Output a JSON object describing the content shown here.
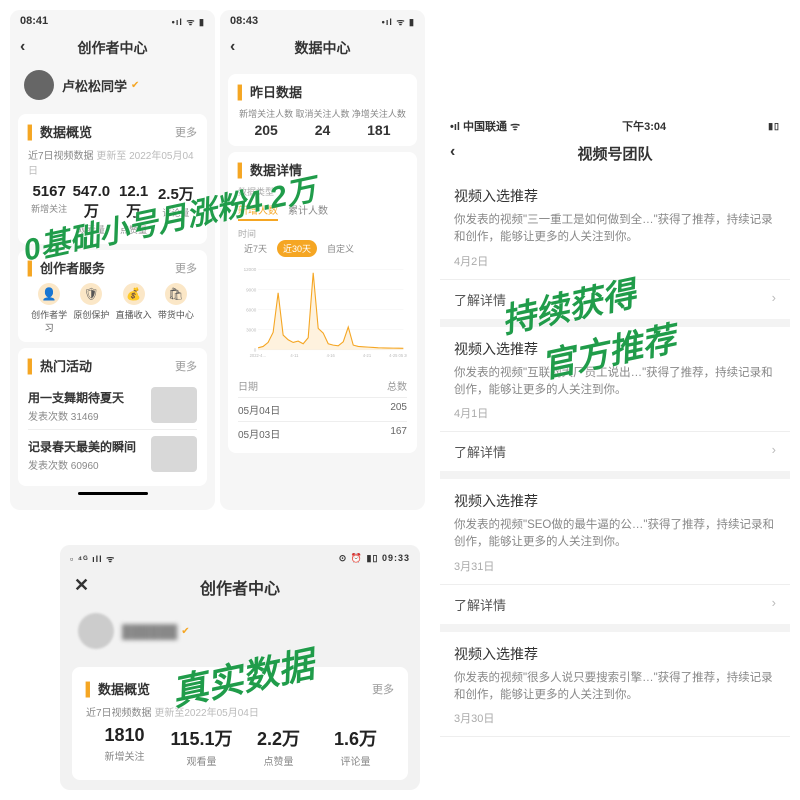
{
  "overlays": {
    "o1": "0基础小号月涨粉4.2万",
    "o2a": "持续获得",
    "o2b": "官方推荐",
    "o3": "真实数据"
  },
  "colors": {
    "accent": "#f5a623",
    "green": "#209c4a"
  },
  "p1": {
    "time": "08:41",
    "title": "创作者中心",
    "user": "卢松松同学",
    "overview": {
      "head": "数据概览",
      "more": "更多",
      "sub_a": "近7日视频数据",
      "sub_b": "更新至 2022年05月04日",
      "cols": [
        {
          "v": "5167",
          "l": "新增关注"
        },
        {
          "v": "547.0万",
          "l": "观看量"
        },
        {
          "v": "12.1万",
          "l": "点赞量"
        },
        {
          "v": "2.5万",
          "l": "评论量"
        }
      ]
    },
    "service": {
      "head": "创作者服务",
      "more": "更多",
      "items": [
        {
          "ic": "👤",
          "l": "创作者学习"
        },
        {
          "ic": "🛡",
          "l": "原创保护"
        },
        {
          "ic": "💰",
          "l": "直播收入"
        },
        {
          "ic": "🛍",
          "l": "带货中心"
        }
      ]
    },
    "hot": {
      "head": "热门活动",
      "more": "更多",
      "items": [
        {
          "t": "用一支舞期待夏天",
          "s": "发表次数  31469"
        },
        {
          "t": "记录春天最美的瞬间",
          "s": "发表次数  60960"
        }
      ]
    }
  },
  "p2": {
    "time": "08:43",
    "title": "数据中心",
    "yest": {
      "head": "昨日数据",
      "cols": [
        {
          "l": "新增关注人数",
          "v": "205"
        },
        {
          "l": "取消关注人数",
          "v": "24"
        },
        {
          "l": "净增关注人数",
          "v": "181"
        }
      ]
    },
    "detail": {
      "head": "数据详情",
      "tabs_label": "数据类型",
      "tabs": [
        "新增人数",
        "累计人数"
      ],
      "range_label": "时间",
      "ranges": [
        "近7天",
        "近30天",
        "自定义"
      ],
      "range_on": 1,
      "yticks": [
        12000,
        9000,
        6000,
        3000,
        0
      ],
      "xlabels": [
        "2022-4…",
        "4-11",
        "4-16",
        "4-21",
        "4-25 05 2022…"
      ],
      "series": [
        300,
        500,
        1100,
        2600,
        8500,
        2200,
        1500,
        1100,
        1300,
        900,
        1800,
        11500,
        3200,
        2500,
        900,
        700,
        600,
        1200,
        3400,
        700,
        500,
        450,
        400,
        350,
        300,
        280,
        260,
        250,
        240,
        220
      ],
      "line_color": "#f5a623",
      "fill_color": "#fde9c8",
      "tbl_head": [
        "日期",
        "总数"
      ],
      "rows": [
        [
          "05月04日",
          "205"
        ],
        [
          "05月03日",
          "167"
        ]
      ]
    }
  },
  "p3": {
    "time": "09:33",
    "title": "创作者中心",
    "user": "██████",
    "overview": {
      "head": "数据概览",
      "more": "更多",
      "sub_a": "近7日视频数据",
      "sub_b": "更新至2022年05月04日",
      "cols": [
        {
          "v": "1810",
          "l": "新增关注"
        },
        {
          "v": "115.1万",
          "l": "观看量"
        },
        {
          "v": "2.2万",
          "l": "点赞量"
        },
        {
          "v": "1.6万",
          "l": "评论量"
        }
      ]
    }
  },
  "p4": {
    "carrier": "中国联通",
    "time": "下午3:04",
    "title": "视频号团队",
    "detail_label": "了解详情",
    "items": [
      {
        "t": "视频入选推荐",
        "b": "你发表的视频\"三一重工是如何做到全…\"获得了推荐，持续记录和创作，能够让更多的人关注到你。",
        "d": "4月2日"
      },
      {
        "t": "视频入选推荐",
        "b": "你发表的视频\"互联网大厂员工说出…\"获得了推荐，持续记录和创作，能够让更多的人关注到你。",
        "d": "4月1日"
      },
      {
        "t": "视频入选推荐",
        "b": "你发表的视频\"SEO做的最牛逼的公…\"获得了推荐，持续记录和创作，能够让更多的人关注到你。",
        "d": "3月31日"
      },
      {
        "t": "视频入选推荐",
        "b": "你发表的视频\"很多人说只要搜索引擎…\"获得了推荐，持续记录和创作，能够让更多的人关注到你。",
        "d": "3月30日"
      }
    ]
  }
}
